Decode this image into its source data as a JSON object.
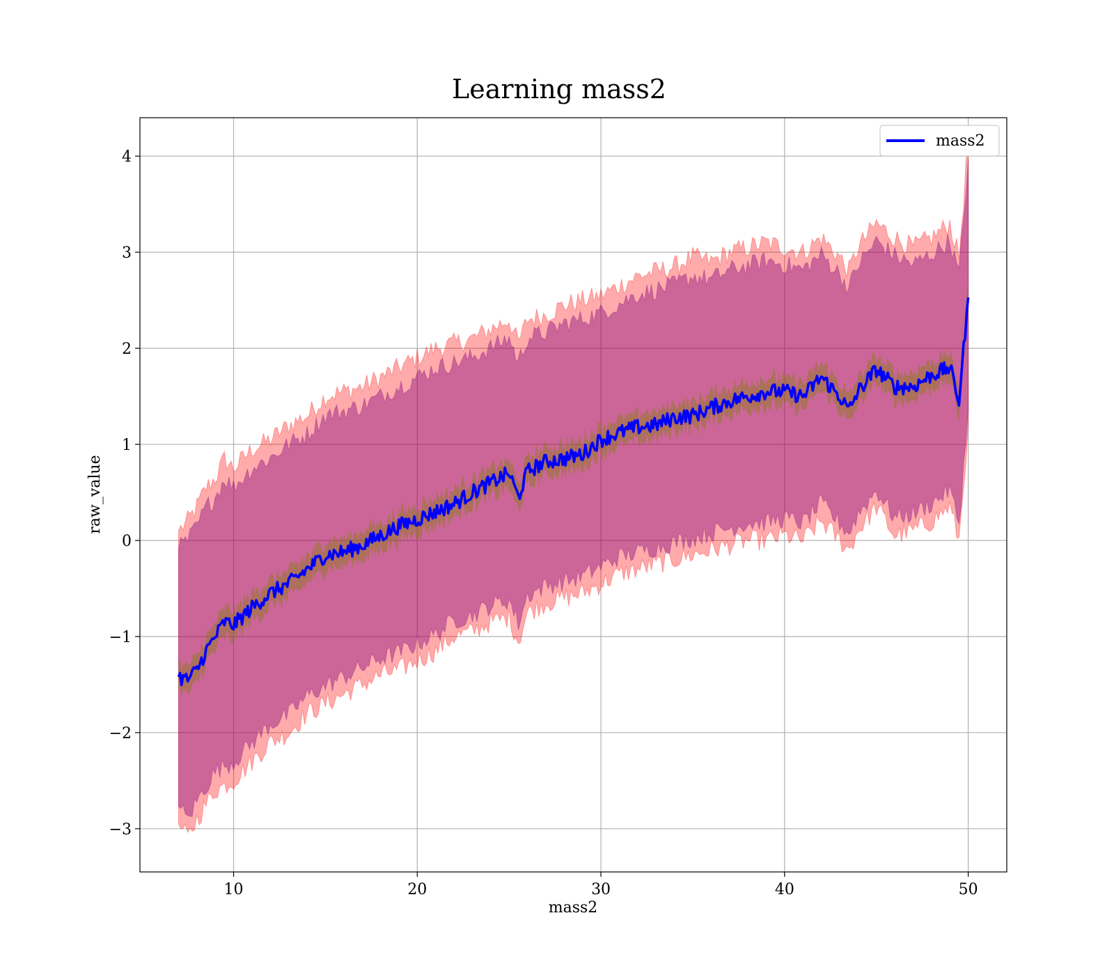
{
  "chart_data": {
    "type": "line",
    "title": "Learning mass2",
    "xlabel": "mass2",
    "ylabel": "raw_value",
    "xlim": [
      4.9,
      52.1
    ],
    "ylim": [
      -3.45,
      4.4
    ],
    "xticks": [
      10,
      20,
      30,
      40,
      50
    ],
    "yticks": [
      -3,
      -2,
      -1,
      0,
      1,
      2,
      3,
      4
    ],
    "xtick_labels": [
      "10",
      "20",
      "30",
      "40",
      "50"
    ],
    "ytick_labels": [
      "−3",
      "−2",
      "−1",
      "0",
      "1",
      "2",
      "3",
      "4"
    ],
    "grid": true,
    "legend_position": "top-right",
    "colors": {
      "mean_line": "#0000ff",
      "outer_band": "#ff0000",
      "inner_band": "#800080",
      "std_band": "#808000"
    },
    "series": [
      {
        "name": "mass2",
        "x": [
          7,
          7.5,
          8,
          8.5,
          9,
          9.5,
          10,
          11,
          12,
          13,
          14,
          15,
          16,
          17,
          18,
          19,
          20,
          21,
          22,
          23,
          24,
          25,
          25.5,
          26,
          27,
          28,
          29,
          30,
          31,
          32,
          33,
          34,
          35,
          36,
          37,
          38,
          39,
          40,
          41,
          42,
          43,
          43.5,
          44,
          45,
          46,
          47,
          48,
          49,
          49.5,
          50
        ],
        "y": [
          -1.42,
          -1.45,
          -1.35,
          -1.15,
          -1.0,
          -0.85,
          -0.88,
          -0.7,
          -0.55,
          -0.45,
          -0.3,
          -0.15,
          -0.12,
          -0.05,
          0.05,
          0.15,
          0.22,
          0.3,
          0.38,
          0.5,
          0.6,
          0.7,
          0.45,
          0.72,
          0.82,
          0.85,
          0.9,
          1.05,
          1.12,
          1.18,
          1.2,
          1.28,
          1.3,
          1.38,
          1.45,
          1.5,
          1.55,
          1.55,
          1.5,
          1.7,
          1.5,
          1.35,
          1.55,
          1.78,
          1.6,
          1.6,
          1.72,
          1.8,
          1.45,
          2.53
        ]
      }
    ],
    "bands": {
      "x": [
        7,
        7.5,
        8,
        8.5,
        9,
        9.5,
        10,
        11,
        12,
        13,
        14,
        15,
        16,
        17,
        18,
        19,
        20,
        21,
        22,
        23,
        24,
        25,
        25.5,
        26,
        27,
        28,
        29,
        30,
        31,
        32,
        33,
        34,
        35,
        36,
        37,
        38,
        39,
        40,
        41,
        42,
        43,
        43.5,
        44,
        45,
        46,
        47,
        48,
        49,
        49.5,
        50
      ],
      "outer_upper": [
        0.1,
        0.2,
        0.35,
        0.55,
        0.65,
        0.85,
        0.75,
        0.95,
        1.05,
        1.2,
        1.3,
        1.5,
        1.55,
        1.6,
        1.7,
        1.8,
        1.9,
        2.0,
        2.05,
        2.1,
        2.2,
        2.3,
        2.05,
        2.3,
        2.35,
        2.45,
        2.5,
        2.55,
        2.65,
        2.75,
        2.8,
        2.85,
        2.95,
        2.9,
        3.0,
        3.05,
        3.1,
        3.05,
        3.0,
        3.15,
        2.95,
        2.8,
        3.05,
        3.3,
        3.15,
        3.05,
        3.15,
        3.3,
        2.95,
        4.15
      ],
      "outer_lower": [
        -2.95,
        -3.1,
        -2.9,
        -2.75,
        -2.6,
        -2.55,
        -2.5,
        -2.3,
        -2.1,
        -2.0,
        -1.8,
        -1.7,
        -1.6,
        -1.5,
        -1.4,
        -1.35,
        -1.25,
        -1.15,
        -1.0,
        -0.95,
        -0.85,
        -0.8,
        -1.05,
        -0.75,
        -0.65,
        -0.6,
        -0.55,
        -0.45,
        -0.35,
        -0.3,
        -0.25,
        -0.2,
        -0.15,
        -0.1,
        -0.05,
        0.0,
        0.0,
        0.05,
        0.0,
        0.2,
        0.0,
        -0.1,
        0.1,
        0.35,
        0.05,
        0.1,
        0.2,
        0.35,
        0.0,
        1.2
      ]
    }
  }
}
